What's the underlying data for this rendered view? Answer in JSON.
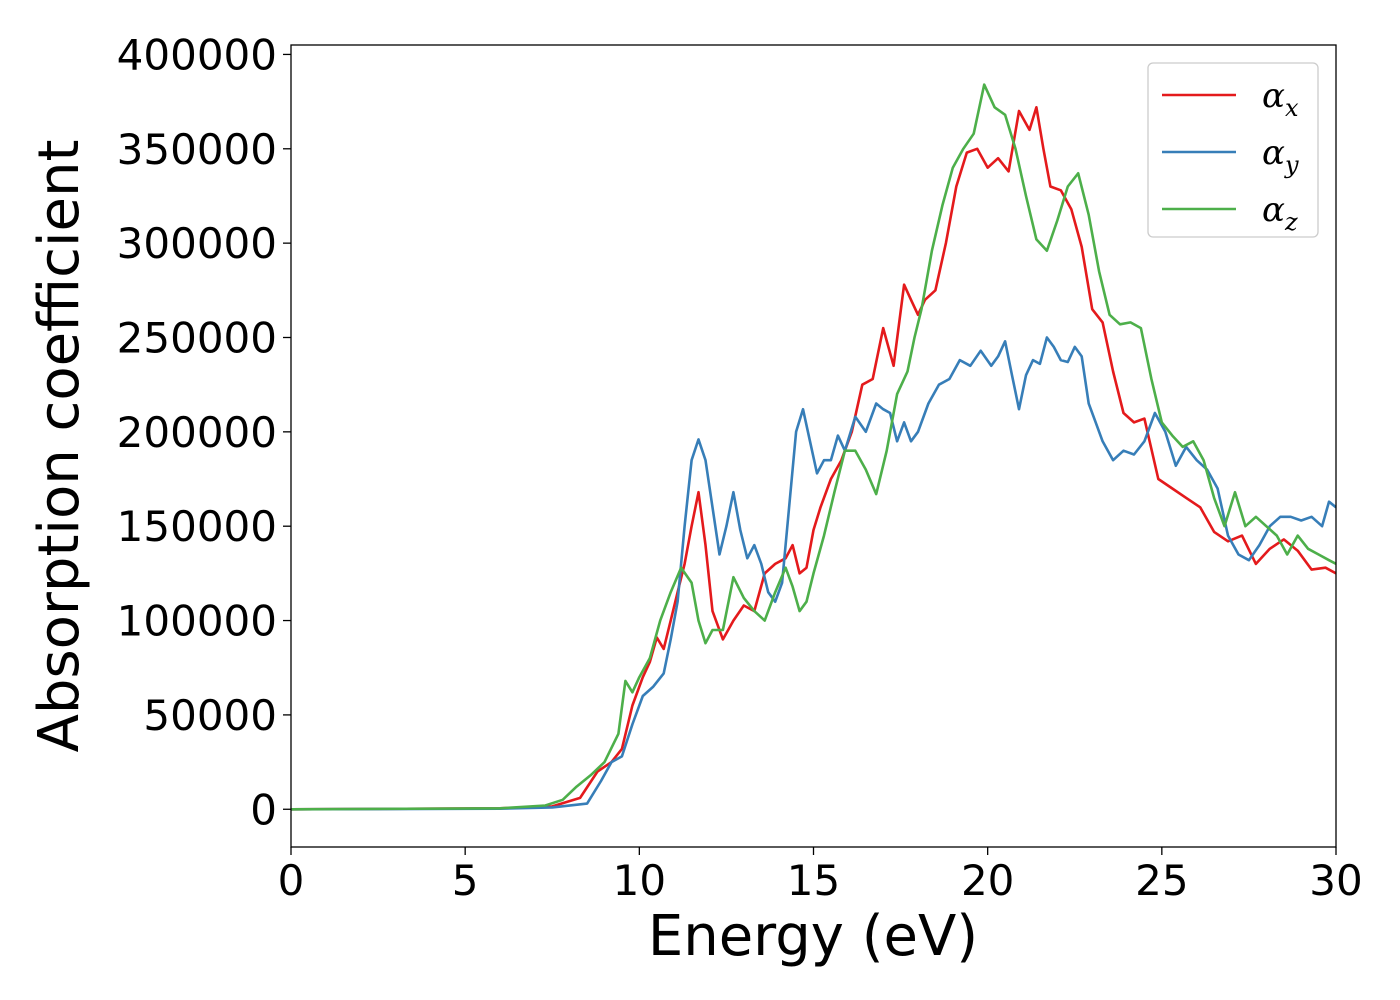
{
  "chart_data": {
    "type": "line",
    "title": "",
    "xlabel": "Energy (eV)",
    "ylabel": "Absorption coefficient",
    "xlim": [
      0,
      30
    ],
    "ylim": [
      -20000,
      405000
    ],
    "xticks": [
      0,
      5,
      10,
      15,
      20,
      25,
      30
    ],
    "yticks": [
      0,
      50000,
      100000,
      150000,
      200000,
      250000,
      300000,
      350000,
      400000
    ],
    "grid": false,
    "legend_position": "top-right",
    "series": [
      {
        "name": "α_x",
        "label_base": "α",
        "label_sub": "x",
        "color": "#e41a1c",
        "x": [
          0,
          6,
          7.5,
          8.3,
          8.8,
          9.2,
          9.5,
          9.8,
          10.1,
          10.3,
          10.5,
          10.7,
          10.9,
          11.1,
          11.3,
          11.5,
          11.7,
          11.9,
          12.1,
          12.4,
          12.7,
          13.0,
          13.3,
          13.6,
          13.9,
          14.2,
          14.4,
          14.6,
          14.8,
          15.0,
          15.2,
          15.5,
          15.8,
          16.1,
          16.4,
          16.7,
          17.0,
          17.3,
          17.6,
          17.8,
          18.0,
          18.2,
          18.5,
          18.8,
          19.1,
          19.4,
          19.7,
          20.0,
          20.3,
          20.6,
          20.9,
          21.2,
          21.4,
          21.6,
          21.8,
          22.1,
          22.4,
          22.7,
          23.0,
          23.3,
          23.6,
          23.9,
          24.2,
          24.5,
          24.9,
          25.3,
          25.7,
          26.1,
          26.5,
          26.9,
          27.3,
          27.7,
          28.1,
          28.5,
          28.9,
          29.3,
          29.7,
          30.0
        ],
        "y": [
          0,
          500,
          1500,
          6000,
          20000,
          25000,
          32000,
          55000,
          70000,
          78000,
          91000,
          85000,
          100000,
          115000,
          130000,
          150000,
          168000,
          140000,
          105000,
          90000,
          100000,
          108000,
          105000,
          125000,
          130000,
          133000,
          140000,
          125000,
          128000,
          148000,
          160000,
          175000,
          185000,
          200000,
          225000,
          228000,
          255000,
          235000,
          278000,
          270000,
          262000,
          270000,
          275000,
          300000,
          330000,
          348000,
          350000,
          340000,
          345000,
          338000,
          370000,
          360000,
          372000,
          350000,
          330000,
          328000,
          318000,
          298000,
          265000,
          258000,
          232000,
          210000,
          205000,
          207000,
          175000,
          170000,
          165000,
          160000,
          147000,
          142000,
          145000,
          130000,
          138000,
          143000,
          137000,
          127000,
          128000,
          125000
        ]
      },
      {
        "name": "α_y",
        "label_base": "α",
        "label_sub": "y",
        "color": "#377eb8",
        "x": [
          0,
          6,
          7.5,
          8.5,
          8.9,
          9.2,
          9.5,
          9.8,
          10.1,
          10.4,
          10.7,
          10.9,
          11.1,
          11.3,
          11.5,
          11.7,
          11.9,
          12.1,
          12.3,
          12.5,
          12.7,
          12.9,
          13.1,
          13.3,
          13.5,
          13.7,
          13.9,
          14.1,
          14.3,
          14.5,
          14.7,
          14.9,
          15.1,
          15.3,
          15.5,
          15.7,
          15.9,
          16.2,
          16.5,
          16.8,
          17.0,
          17.2,
          17.4,
          17.6,
          17.8,
          18.0,
          18.3,
          18.6,
          18.9,
          19.2,
          19.5,
          19.8,
          20.1,
          20.3,
          20.5,
          20.7,
          20.9,
          21.1,
          21.3,
          21.5,
          21.7,
          21.9,
          22.1,
          22.3,
          22.5,
          22.7,
          22.9,
          23.1,
          23.3,
          23.6,
          23.9,
          24.2,
          24.5,
          24.8,
          25.1,
          25.4,
          25.7,
          26.0,
          26.3,
          26.6,
          26.9,
          27.2,
          27.5,
          27.8,
          28.1,
          28.4,
          28.7,
          29.0,
          29.3,
          29.6,
          29.8,
          30.0
        ],
        "y": [
          0,
          300,
          1000,
          3000,
          15000,
          25000,
          28000,
          45000,
          60000,
          65000,
          72000,
          90000,
          110000,
          150000,
          185000,
          196000,
          185000,
          160000,
          135000,
          150000,
          168000,
          148000,
          133000,
          140000,
          130000,
          115000,
          110000,
          120000,
          160000,
          200000,
          212000,
          195000,
          178000,
          185000,
          185000,
          198000,
          190000,
          208000,
          200000,
          215000,
          212000,
          210000,
          195000,
          205000,
          195000,
          200000,
          215000,
          225000,
          228000,
          238000,
          235000,
          243000,
          235000,
          240000,
          248000,
          230000,
          212000,
          230000,
          238000,
          236000,
          250000,
          245000,
          238000,
          237000,
          245000,
          240000,
          215000,
          205000,
          195000,
          185000,
          190000,
          188000,
          195000,
          210000,
          200000,
          182000,
          192000,
          185000,
          180000,
          170000,
          145000,
          135000,
          132000,
          140000,
          150000,
          155000,
          155000,
          153000,
          155000,
          150000,
          163000,
          160000
        ]
      },
      {
        "name": "α_z",
        "label_base": "α",
        "label_sub": "z",
        "color": "#4daf4a",
        "x": [
          0,
          6,
          7.3,
          7.8,
          8.2,
          8.6,
          9.0,
          9.4,
          9.6,
          9.8,
          10.0,
          10.3,
          10.6,
          10.9,
          11.2,
          11.5,
          11.7,
          11.9,
          12.1,
          12.4,
          12.7,
          13.0,
          13.3,
          13.6,
          13.9,
          14.2,
          14.4,
          14.6,
          14.8,
          15.0,
          15.3,
          15.6,
          15.9,
          16.2,
          16.5,
          16.8,
          17.1,
          17.4,
          17.7,
          17.9,
          18.1,
          18.4,
          18.7,
          19.0,
          19.3,
          19.6,
          19.9,
          20.2,
          20.5,
          20.8,
          21.1,
          21.4,
          21.7,
          22.0,
          22.3,
          22.6,
          22.9,
          23.2,
          23.5,
          23.8,
          24.1,
          24.4,
          24.7,
          25.0,
          25.3,
          25.6,
          25.9,
          26.2,
          26.5,
          26.8,
          27.1,
          27.4,
          27.7,
          28.0,
          28.3,
          28.6,
          28.9,
          29.2,
          29.5,
          29.8,
          30.0
        ],
        "y": [
          0,
          500,
          2000,
          5000,
          12000,
          18000,
          25000,
          40000,
          68000,
          62000,
          70000,
          80000,
          100000,
          115000,
          128000,
          120000,
          100000,
          88000,
          95000,
          95000,
          123000,
          112000,
          105000,
          100000,
          115000,
          128000,
          118000,
          105000,
          110000,
          125000,
          145000,
          168000,
          190000,
          190000,
          180000,
          167000,
          190000,
          220000,
          232000,
          250000,
          265000,
          296000,
          320000,
          340000,
          350000,
          358000,
          384000,
          372000,
          368000,
          350000,
          325000,
          302000,
          296000,
          312000,
          330000,
          337000,
          315000,
          285000,
          262000,
          257000,
          258000,
          255000,
          228000,
          205000,
          198000,
          192000,
          195000,
          185000,
          165000,
          150000,
          168000,
          150000,
          155000,
          150000,
          145000,
          135000,
          145000,
          138000,
          135000,
          132000,
          130000
        ]
      }
    ]
  }
}
